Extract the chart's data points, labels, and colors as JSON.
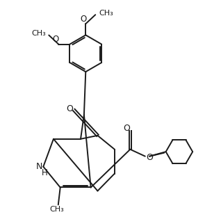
{
  "background_color": "#ffffff",
  "line_color": "#1a1a1a",
  "line_width": 1.4,
  "font_size": 8.5,
  "figsize": [
    3.18,
    3.12
  ],
  "dpi": 100,
  "xlim": [
    0,
    10
  ],
  "ylim": [
    0,
    10
  ]
}
